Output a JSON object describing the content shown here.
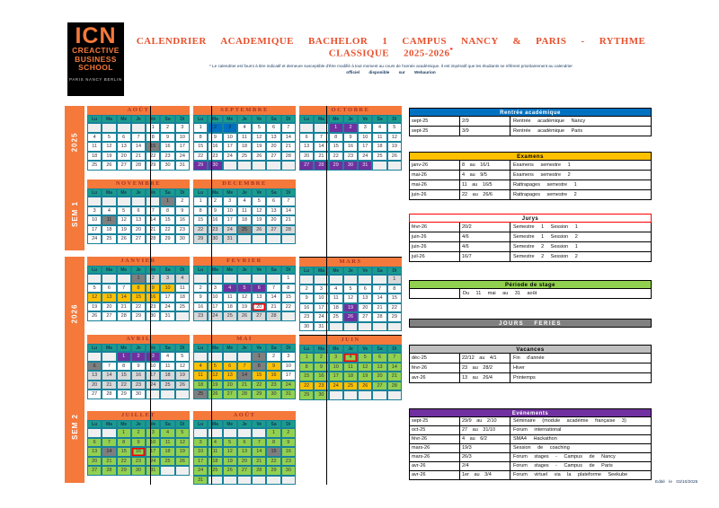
{
  "logo": {
    "acronym": "ICN",
    "line1": "CREACTIVE",
    "line2": "BUSINESS",
    "line3": "SCHOOL",
    "cities": "PARIS   NANCY   BERLIN"
  },
  "header": {
    "title": "CALENDRIER ACADEMIQUE BACHELOR 1 CAMPUS NANCY & PARIS - RYTHME CLASSIQUE 2025-2026",
    "title_mark": "*",
    "footnote1": "* Le calendrier est fourni à titre indicatif et demeure susceptible d'être modifié à tout moment au cours de l'année académique. Il est impératif que les étudiants se réfèrent prioritairement au calendrier",
    "footnote2": "officiel disponible sur Webaurion"
  },
  "sidebars": [
    {
      "year": "2025",
      "semester": "SEM 1"
    },
    {
      "year": "2026",
      "semester": "SEM 2"
    }
  ],
  "weekdays": [
    "Lu",
    "Ma",
    "Me",
    "Je",
    "Ve",
    "Sa",
    "Di"
  ],
  "colors": {
    "orange": "#F4793B",
    "teal_header": "#1A9C8C",
    "grid_border": "#17829B",
    "holiday_gray": "#7F7F7F",
    "vacation_gray": "#D8D8D8",
    "exam_yellow": "#FFC000",
    "event_purple": "#7030A0",
    "rentree_blue": "#0070C0",
    "stage_green": "#92D050",
    "jury_ring_red": "#FF0000"
  },
  "months": [
    {
      "name": "AOÛT",
      "weeks": [
        [
          "",
          "",
          "",
          "",
          "1",
          "2",
          "3"
        ],
        [
          "4",
          "5",
          "6",
          "7",
          "8",
          "9",
          "10"
        ],
        [
          "11",
          "12",
          "13",
          "14",
          "15H",
          "16",
          "17"
        ],
        [
          "18",
          "19",
          "20",
          "21",
          "22",
          "23",
          "24"
        ],
        [
          "25",
          "26",
          "27",
          "28",
          "29",
          "30",
          "31"
        ]
      ]
    },
    {
      "name": "SEPTEMBRE",
      "weeks": [
        [
          "1",
          "2R",
          "3R",
          "4",
          "5",
          "6",
          "7"
        ],
        [
          "8",
          "9",
          "10",
          "11",
          "12",
          "13",
          "14"
        ],
        [
          "15",
          "16",
          "17",
          "18",
          "19",
          "20",
          "21"
        ],
        [
          "22",
          "23",
          "24",
          "25",
          "26",
          "27",
          "28"
        ],
        [
          "29E",
          "30E",
          "",
          "",
          "",
          "",
          ""
        ]
      ]
    },
    {
      "name": "OCTOBRE",
      "weeks": [
        [
          "",
          "",
          "1E",
          "2E",
          "3",
          "4",
          "5"
        ],
        [
          "6",
          "7",
          "8",
          "9",
          "10",
          "11",
          "12"
        ],
        [
          "13",
          "14",
          "15",
          "16",
          "17",
          "18",
          "19"
        ],
        [
          "20",
          "21",
          "22",
          "23",
          "24",
          "25",
          "26"
        ],
        [
          "27E",
          "28E",
          "29E",
          "30E",
          "31E",
          "",
          ""
        ]
      ]
    },
    {
      "name": "NOVEMBRE",
      "weeks": [
        [
          "",
          "",
          "",
          "",
          "",
          "1H",
          "2"
        ],
        [
          "3",
          "4",
          "5",
          "6",
          "7",
          "8",
          "9"
        ],
        [
          "10",
          "11H",
          "12",
          "13",
          "14",
          "15",
          "16"
        ],
        [
          "17",
          "18",
          "19",
          "20",
          "21",
          "22",
          "23"
        ],
        [
          "24",
          "25",
          "26",
          "27",
          "28",
          "29",
          "30"
        ]
      ]
    },
    {
      "name": "DECEMBRE",
      "weeks": [
        [
          "1",
          "2",
          "3",
          "4",
          "5",
          "6",
          "7"
        ],
        [
          "8",
          "9",
          "10",
          "11",
          "12",
          "13",
          "14"
        ],
        [
          "15",
          "16",
          "17",
          "18",
          "19",
          "20",
          "21"
        ],
        [
          "22V",
          "23V",
          "24V",
          "25H",
          "26V",
          "27V",
          "28V"
        ],
        [
          "29V",
          "30V",
          "31V",
          "",
          "",
          "",
          ""
        ]
      ]
    },
    {
      "name": "JANVIER",
      "weeks": [
        [
          "",
          "",
          "",
          "1H",
          "2V",
          "3V",
          "4V"
        ],
        [
          "5",
          "6",
          "7",
          "8X",
          "9X",
          "10X",
          "11"
        ],
        [
          "12X",
          "13X",
          "14X",
          "15X",
          "16X",
          "17",
          "18"
        ],
        [
          "19",
          "20",
          "21",
          "22",
          "23",
          "24",
          "25"
        ],
        [
          "26",
          "27",
          "28",
          "29",
          "30",
          "31",
          ""
        ]
      ]
    },
    {
      "name": "FEVRIER",
      "weeks": [
        [
          "",
          "",
          "",
          "",
          "",
          "",
          "1"
        ],
        [
          "2",
          "3",
          "4E",
          "5E",
          "6E",
          "7",
          "8"
        ],
        [
          "9",
          "10",
          "11",
          "12",
          "13",
          "14",
          "15"
        ],
        [
          "16",
          "17",
          "18",
          "19",
          "20!",
          "21",
          "22"
        ],
        [
          "23V",
          "24V",
          "25V",
          "26V",
          "27V",
          "28V",
          ""
        ]
      ]
    },
    {
      "name": "MARS",
      "weeks": [
        [
          "",
          "",
          "",
          "",
          "",
          "",
          "1V"
        ],
        [
          "2",
          "3",
          "4",
          "5",
          "6",
          "7",
          "8"
        ],
        [
          "9",
          "10",
          "11",
          "12",
          "13",
          "14",
          "15"
        ],
        [
          "16",
          "17",
          "18",
          "19E",
          "20",
          "21",
          "22"
        ],
        [
          "23",
          "24",
          "25",
          "26E",
          "27",
          "28",
          "29"
        ],
        [
          "30",
          "31",
          "",
          "",
          "",
          "",
          ""
        ]
      ]
    },
    {
      "name": "AVRIL",
      "weeks": [
        [
          "",
          "",
          "1E",
          "2E",
          "3E",
          "4",
          "5"
        ],
        [
          "6H",
          "7",
          "8",
          "9",
          "10",
          "11",
          "12"
        ],
        [
          "13V",
          "14V",
          "15V",
          "16V",
          "17V",
          "18V",
          "19V"
        ],
        [
          "20V",
          "21V",
          "22V",
          "23V",
          "24V",
          "25V",
          "26V"
        ],
        [
          "27",
          "28",
          "29",
          "30",
          "",
          "",
          ""
        ]
      ]
    },
    {
      "name": "MAI",
      "weeks": [
        [
          "",
          "",
          "",
          "",
          "1H",
          "2",
          "3"
        ],
        [
          "4X",
          "5X",
          "6X",
          "7X",
          "8H",
          "9X",
          "10"
        ],
        [
          "11X",
          "12X",
          "13X",
          "14H",
          "15X",
          "16X",
          "17"
        ],
        [
          "18S",
          "19S",
          "20S",
          "21S",
          "22S",
          "23S",
          "24S"
        ],
        [
          "25H",
          "26S",
          "27S",
          "28S",
          "29S",
          "30S",
          "31S"
        ]
      ]
    },
    {
      "name": "JUIN",
      "weeks": [
        [
          "1S",
          "2S",
          "3S",
          "4S!",
          "5S",
          "6S",
          "7S"
        ],
        [
          "8S",
          "9S",
          "10S",
          "11S",
          "12S",
          "13S",
          "14S"
        ],
        [
          "15S",
          "16S",
          "17S",
          "18S",
          "19S",
          "20S",
          "21S"
        ],
        [
          "22X",
          "23X",
          "24X",
          "25X",
          "26X",
          "27S",
          "28S"
        ],
        [
          "29S",
          "30S",
          "",
          "",
          "",
          "",
          ""
        ]
      ]
    },
    {
      "name": "JUILLET",
      "weeks": [
        [
          "",
          "",
          "1S",
          "2S",
          "3S",
          "4S",
          "5S"
        ],
        [
          "6S",
          "7S",
          "8S",
          "9S",
          "10S",
          "11S",
          "12S"
        ],
        [
          "13S",
          "14H",
          "15S",
          "16S!",
          "17S",
          "18S",
          "19S"
        ],
        [
          "20S",
          "21S",
          "22S",
          "23S",
          "24S",
          "25S",
          "26S"
        ],
        [
          "27S",
          "28S",
          "29S",
          "30S",
          "31S",
          "",
          ""
        ]
      ]
    },
    {
      "name": "AOÛT",
      "weeks": [
        [
          "",
          "",
          "",
          "",
          "",
          "1S",
          "2S"
        ],
        [
          "3S",
          "4S",
          "5S",
          "6S",
          "7S",
          "8S",
          "9S"
        ],
        [
          "10S",
          "11S",
          "12S",
          "13S",
          "14S",
          "15H",
          "16S"
        ],
        [
          "17S",
          "18S",
          "19S",
          "20S",
          "21S",
          "22S",
          "23S"
        ],
        [
          "24S",
          "25S",
          "26S",
          "27S",
          "28S",
          "29S",
          "30S"
        ],
        [
          "31S",
          "",
          "",
          "",
          "",
          "",
          ""
        ]
      ]
    }
  ],
  "tables": [
    {
      "id": "rentree",
      "title": "Rentrée académique",
      "color": "#0070C0",
      "text": "#FFFFFF",
      "rows": [
        [
          "sept-25",
          "2/9",
          "Rentrée académique Nancy"
        ],
        [
          "sept-25",
          "3/9",
          "Rentrée académique Paris"
        ]
      ]
    },
    {
      "id": "examens",
      "title": "Examens",
      "color": "#FFC000",
      "text": "#000000",
      "rows": [
        [
          "janv-26",
          "8 au 16/1",
          "Examens semestre 1"
        ],
        [
          "mai-26",
          "4 au 9/5",
          "Examens semestre 2"
        ],
        [
          "mai-26",
          "11 au 16/5",
          "Rattrapages semestre 1"
        ],
        [
          "juin-26",
          "22 au 26/6",
          "Rattrapages semestre 2"
        ]
      ]
    },
    {
      "id": "jurys",
      "title": "Jurys",
      "color": "#FFFFFF",
      "text": "#000000",
      "red_outline": true,
      "rows": [
        [
          "févr-26",
          "20/2",
          "Semestre 1 Session 1"
        ],
        [
          "juin-26",
          "4/6",
          "Semestre 1 Session 2"
        ],
        [
          "juin-26",
          "4/6",
          "Semestre 2 Session 1"
        ],
        [
          "juil-26",
          "16/7",
          "Semestre 2 Session 2"
        ]
      ]
    },
    {
      "id": "stage",
      "title": "Période de stage",
      "color": "#92D050",
      "text": "#000000",
      "rows": [
        [
          "",
          "Du 11 mai au 31 août"
        ]
      ]
    },
    {
      "id": "feries",
      "title": "JOURS FERIES",
      "color": "#808080",
      "text": "#FFFFFF",
      "rows": []
    },
    {
      "id": "vacances",
      "title": "Vacances",
      "color": "#BFBFBF",
      "text": "#000000",
      "rows": [
        [
          "déc-25",
          "22/12 au 4/1",
          "Fin d'année"
        ],
        [
          "févr-26",
          "23 au 28/2",
          "Hiver"
        ],
        [
          "avr-26",
          "13 au 26/4",
          "Printemps"
        ]
      ]
    },
    {
      "id": "evenements",
      "title": "Evénements",
      "color": "#7030A0",
      "text": "#FFFFFF",
      "rows": [
        [
          "sept-25",
          "29/9 au 2/10",
          "Séminaire (module académie française 3)"
        ],
        [
          "oct-25",
          "27 au 31/10",
          "Forum international"
        ],
        [
          "févr-26",
          "4 au 6/2",
          "SMA4 Hackathon"
        ],
        [
          "mars-26",
          "19/3",
          "Session de coaching"
        ],
        [
          "mars-26",
          "26/3",
          "Forum stages - Campus de Nancy"
        ],
        [
          "avr-26",
          "2/4",
          "Forum stages - Campus de Paris"
        ],
        [
          "avr-26",
          "1er au 3/4",
          "Forum virtuel via la plateforme Seekube"
        ]
      ]
    }
  ],
  "footer": {
    "edited": "Edité le 03/10/2025"
  }
}
